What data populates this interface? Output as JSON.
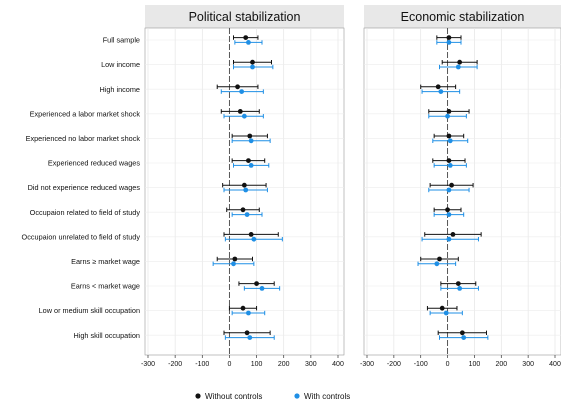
{
  "chart_data": {
    "type": "coefficient-plot",
    "x_range": [
      -300,
      400
    ],
    "x_ticks": [
      -300,
      -200,
      -100,
      0,
      100,
      200,
      300,
      400
    ],
    "reference_line": 0,
    "grid": true,
    "legend_placement": "bottom",
    "legend": [
      {
        "name": "Without controls",
        "color": "#111111"
      },
      {
        "name": "With controls",
        "color": "#1f8fe5"
      }
    ],
    "rows": [
      "Full sample",
      "Low income",
      "High income",
      "Experienced a labor market shock",
      "Experienced no labor market shock",
      "Experienced reduced wages",
      "Did not experience reduced wages",
      "Occupaion related to field of study",
      "Occupaion unrelated to field of study",
      "Earns ≥ market wage",
      "Earns < market wage",
      "Low or medium skill occupation",
      "High skill occupation"
    ],
    "panels": [
      {
        "title": "Political stabilization",
        "without_controls": [
          {
            "est": 60,
            "lo": 15,
            "hi": 105
          },
          {
            "est": 85,
            "lo": 15,
            "hi": 155
          },
          {
            "est": 30,
            "lo": -45,
            "hi": 105
          },
          {
            "est": 40,
            "lo": -30,
            "hi": 110
          },
          {
            "est": 75,
            "lo": 10,
            "hi": 140
          },
          {
            "est": 70,
            "lo": 10,
            "hi": 130
          },
          {
            "est": 55,
            "lo": -25,
            "hi": 135
          },
          {
            "est": 50,
            "lo": -10,
            "hi": 110
          },
          {
            "est": 80,
            "lo": -20,
            "hi": 180
          },
          {
            "est": 20,
            "lo": -45,
            "hi": 85
          },
          {
            "est": 100,
            "lo": 35,
            "hi": 165
          },
          {
            "est": 50,
            "lo": 0,
            "hi": 100
          },
          {
            "est": 65,
            "lo": -20,
            "hi": 150
          }
        ],
        "with_controls": [
          {
            "est": 70,
            "lo": 20,
            "hi": 120
          },
          {
            "est": 85,
            "lo": 15,
            "hi": 160
          },
          {
            "est": 45,
            "lo": -30,
            "hi": 125
          },
          {
            "est": 55,
            "lo": -20,
            "hi": 125
          },
          {
            "est": 80,
            "lo": 10,
            "hi": 150
          },
          {
            "est": 80,
            "lo": 15,
            "hi": 145
          },
          {
            "est": 60,
            "lo": -20,
            "hi": 140
          },
          {
            "est": 65,
            "lo": 10,
            "hi": 120
          },
          {
            "est": 90,
            "lo": -15,
            "hi": 195
          },
          {
            "est": 15,
            "lo": -60,
            "hi": 90
          },
          {
            "est": 120,
            "lo": 55,
            "hi": 185
          },
          {
            "est": 70,
            "lo": 10,
            "hi": 130
          },
          {
            "est": 75,
            "lo": -15,
            "hi": 165
          }
        ]
      },
      {
        "title": "Economic stabilization",
        "without_controls": [
          {
            "est": 5,
            "lo": -40,
            "hi": 50
          },
          {
            "est": 45,
            "lo": -20,
            "hi": 110
          },
          {
            "est": -35,
            "lo": -100,
            "hi": 30
          },
          {
            "est": 5,
            "lo": -70,
            "hi": 80
          },
          {
            "est": 5,
            "lo": -50,
            "hi": 60
          },
          {
            "est": 5,
            "lo": -55,
            "hi": 65
          },
          {
            "est": 15,
            "lo": -65,
            "hi": 95
          },
          {
            "est": 0,
            "lo": -50,
            "hi": 50
          },
          {
            "est": 20,
            "lo": -85,
            "hi": 125
          },
          {
            "est": -30,
            "lo": -100,
            "hi": 40
          },
          {
            "est": 40,
            "lo": -25,
            "hi": 105
          },
          {
            "est": -20,
            "lo": -75,
            "hi": 35
          },
          {
            "est": 55,
            "lo": -35,
            "hi": 145
          }
        ],
        "with_controls": [
          {
            "est": 5,
            "lo": -40,
            "hi": 50
          },
          {
            "est": 40,
            "lo": -30,
            "hi": 110
          },
          {
            "est": -25,
            "lo": -95,
            "hi": 45
          },
          {
            "est": 0,
            "lo": -70,
            "hi": 70
          },
          {
            "est": 10,
            "lo": -55,
            "hi": 75
          },
          {
            "est": 10,
            "lo": -50,
            "hi": 70
          },
          {
            "est": 5,
            "lo": -70,
            "hi": 80
          },
          {
            "est": 5,
            "lo": -50,
            "hi": 60
          },
          {
            "est": 5,
            "lo": -95,
            "hi": 115
          },
          {
            "est": -40,
            "lo": -110,
            "hi": 30
          },
          {
            "est": 45,
            "lo": -25,
            "hi": 115
          },
          {
            "est": -5,
            "lo": -65,
            "hi": 55
          },
          {
            "est": 60,
            "lo": -30,
            "hi": 150
          }
        ]
      }
    ]
  }
}
